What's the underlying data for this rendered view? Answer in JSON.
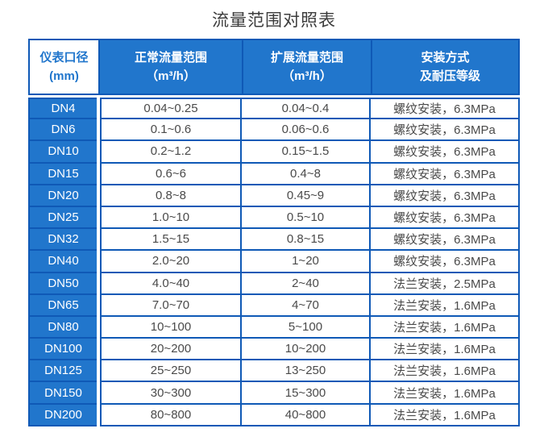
{
  "title": "流量范围对照表",
  "colors": {
    "fill_blue": "#2176cc",
    "border_blue": "#0f59b6",
    "title_color": "#3c3c3c",
    "value_color": "#4a4a4a"
  },
  "chart_data": {
    "type": "table",
    "title": "流量范围对照表",
    "headers": [
      {
        "line1": "仪表口径",
        "line2": "(mm)"
      },
      {
        "line1": "正常流量范围",
        "line2": "（m³/h）"
      },
      {
        "line1": "扩展流量范围",
        "line2": "（m³/h）"
      },
      {
        "line1": "安装方式",
        "line2": "及耐压等级"
      }
    ],
    "rows": [
      {
        "dn": "DN4",
        "normal": "0.04~0.25",
        "extended": "0.04~0.4",
        "install": "螺纹安装，6.3MPa"
      },
      {
        "dn": "DN6",
        "normal": "0.1~0.6",
        "extended": "0.06~0.6",
        "install": "螺纹安装，6.3MPa"
      },
      {
        "dn": "DN10",
        "normal": "0.2~1.2",
        "extended": "0.15~1.5",
        "install": "螺纹安装，6.3MPa"
      },
      {
        "dn": "DN15",
        "normal": "0.6~6",
        "extended": "0.4~8",
        "install": "螺纹安装，6.3MPa"
      },
      {
        "dn": "DN20",
        "normal": "0.8~8",
        "extended": "0.45~9",
        "install": "螺纹安装，6.3MPa"
      },
      {
        "dn": "DN25",
        "normal": "1.0~10",
        "extended": "0.5~10",
        "install": "螺纹安装，6.3MPa"
      },
      {
        "dn": "DN32",
        "normal": "1.5~15",
        "extended": "0.8~15",
        "install": "螺纹安装，6.3MPa"
      },
      {
        "dn": "DN40",
        "normal": "2.0~20",
        "extended": "1~20",
        "install": "螺纹安装，6.3MPa"
      },
      {
        "dn": "DN50",
        "normal": "4.0~40",
        "extended": "2~40",
        "install": "法兰安装，2.5MPa"
      },
      {
        "dn": "DN65",
        "normal": "7.0~70",
        "extended": "4~70",
        "install": "法兰安装，1.6MPa"
      },
      {
        "dn": "DN80",
        "normal": "10~100",
        "extended": "5~100",
        "install": "法兰安装，1.6MPa"
      },
      {
        "dn": "DN100",
        "normal": "20~200",
        "extended": "10~200",
        "install": "法兰安装，1.6MPa"
      },
      {
        "dn": "DN125",
        "normal": "25~250",
        "extended": "13~250",
        "install": "法兰安装，1.6MPa"
      },
      {
        "dn": "DN150",
        "normal": "30~300",
        "extended": "15~300",
        "install": "法兰安装，1.6MPa"
      },
      {
        "dn": "DN200",
        "normal": "80~800",
        "extended": "40~800",
        "install": "法兰安装，1.6MPa"
      }
    ]
  }
}
